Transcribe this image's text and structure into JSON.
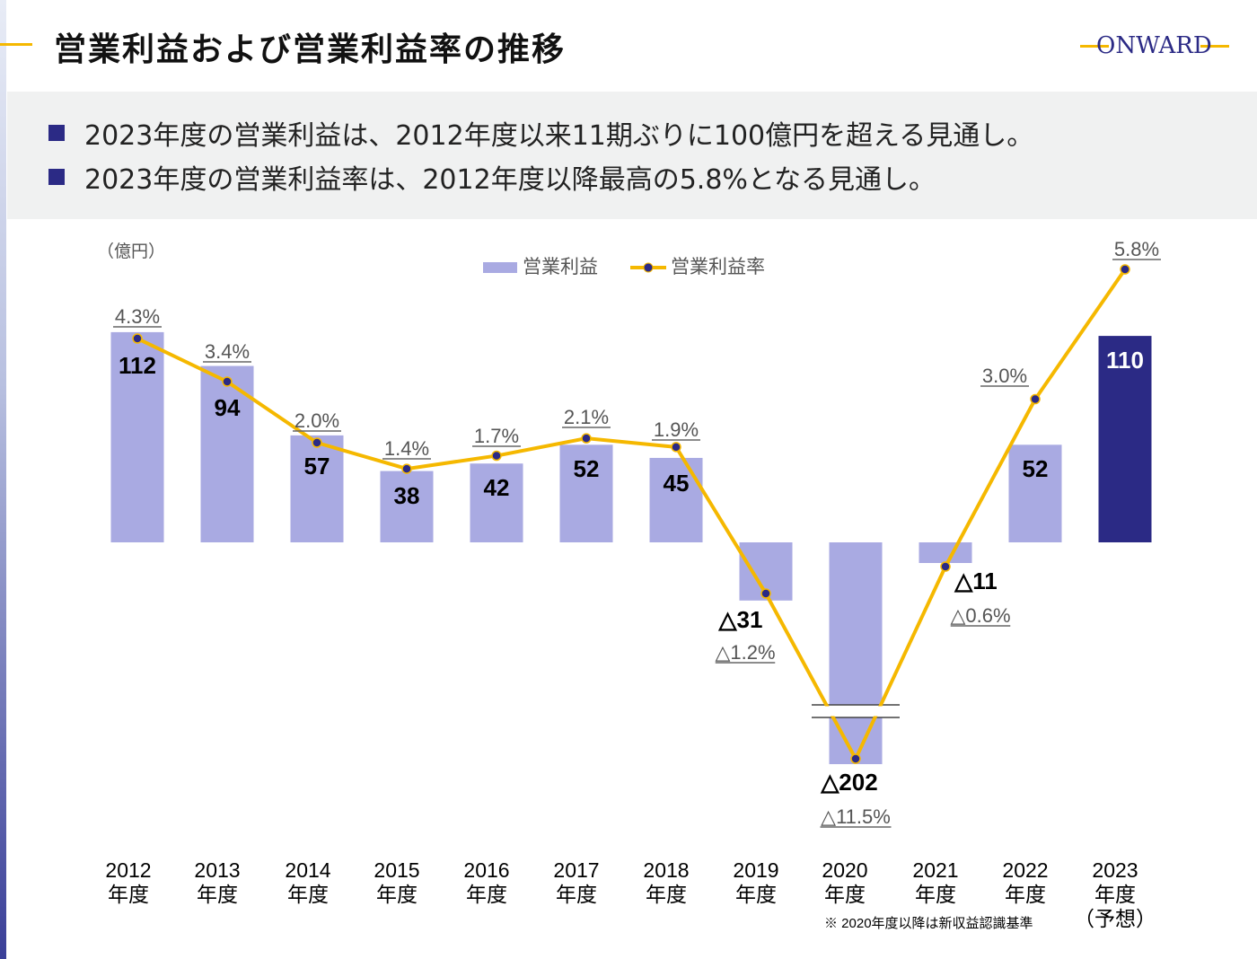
{
  "header": {
    "title": "営業利益および営業利益率の推移",
    "logo": "ONWARD"
  },
  "summary": [
    "2023年度の営業利益は、2012年度以来11期ぶりに100億円を超える見通し。",
    "2023年度の営業利益率は、2012年度以降最高の5.8%となる見通し。"
  ],
  "chart_data": {
    "type": "bar+line",
    "unit_label": "（億円）",
    "legend": [
      "営業利益",
      "営業利益率"
    ],
    "legend_position": "top-center",
    "categories": [
      [
        "2012",
        "年度"
      ],
      [
        "2013",
        "年度"
      ],
      [
        "2014",
        "年度"
      ],
      [
        "2015",
        "年度"
      ],
      [
        "2016",
        "年度"
      ],
      [
        "2017",
        "年度"
      ],
      [
        "2018",
        "年度"
      ],
      [
        "2019",
        "年度"
      ],
      [
        "2020",
        "年度"
      ],
      [
        "2021",
        "年度"
      ],
      [
        "2022",
        "年度"
      ],
      [
        "2023",
        "年度",
        "（予想）"
      ]
    ],
    "series": [
      {
        "name": "営業利益",
        "type": "bar",
        "values": [
          112,
          94,
          57,
          38,
          42,
          52,
          45,
          -31,
          -202,
          -11,
          52,
          110
        ],
        "labels": [
          "112",
          "94",
          "57",
          "38",
          "42",
          "52",
          "45",
          "△31",
          "△202",
          "△11",
          "52",
          "110"
        ]
      },
      {
        "name": "営業利益率",
        "type": "line",
        "values": [
          4.3,
          3.4,
          2.0,
          1.4,
          1.7,
          2.1,
          1.9,
          -1.2,
          -11.5,
          -0.6,
          3.0,
          5.8
        ],
        "labels": [
          "4.3%",
          "3.4%",
          "2.0%",
          "1.4%",
          "1.7%",
          "2.1%",
          "1.9%",
          "△1.2%",
          "△11.5%",
          "△0.6%",
          "3.0%",
          "5.8%"
        ]
      }
    ],
    "axis_break": "2020年度 bar and line value truncated",
    "grid": false,
    "colors": {
      "bar": "#a9aae2",
      "bar_highlight": "#2b2a85",
      "line": "#f5b800",
      "marker": "#2b2a85"
    },
    "footnote": "※ 2020年度以降は新収益認識基準"
  }
}
